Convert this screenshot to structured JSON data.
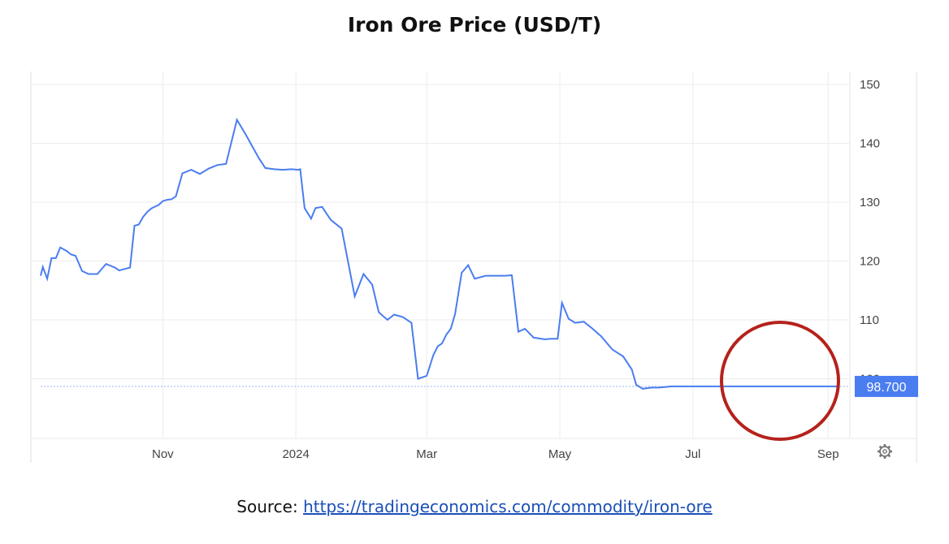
{
  "chart_data": {
    "type": "line",
    "title": "Iron Ore Price (USD/T)",
    "xlabel": "",
    "ylabel": "",
    "x_range": [
      "2023-09-06",
      "2024-09-05"
    ],
    "ylim": [
      90,
      152
    ],
    "y_ticks": [
      100,
      110,
      120,
      130,
      140,
      150
    ],
    "y_axis_position": "right",
    "x_ticks": [
      {
        "label": "Nov",
        "date": "2023-11-01"
      },
      {
        "label": "2024",
        "date": "2024-01-01"
      },
      {
        "label": "Mar",
        "date": "2024-03-01"
      },
      {
        "label": "May",
        "date": "2024-05-01"
      },
      {
        "label": "Jul",
        "date": "2024-07-01"
      },
      {
        "label": "Sep",
        "date": "2024-09-01"
      }
    ],
    "grid": true,
    "line_color": "#4a7df0",
    "last_value": 98.7,
    "last_value_label": "98.700",
    "highlight_circle_color": "#b5221c",
    "series": [
      {
        "x": [
          "2023-09-06",
          "2023-09-07",
          "2023-09-09",
          "2023-09-11",
          "2023-09-13",
          "2023-09-15",
          "2023-09-18",
          "2023-09-20",
          "2023-09-22",
          "2023-09-25",
          "2023-09-28",
          "2023-10-02",
          "2023-10-06",
          "2023-10-10",
          "2023-10-12",
          "2023-10-14",
          "2023-10-17",
          "2023-10-19",
          "2023-10-21",
          "2023-10-23",
          "2023-10-25",
          "2023-10-27",
          "2023-10-30",
          "2023-11-01",
          "2023-11-03",
          "2023-11-05",
          "2023-11-07",
          "2023-11-10",
          "2023-11-14",
          "2023-11-18",
          "2023-11-22",
          "2023-11-26",
          "2023-11-30",
          "2023-12-05",
          "2023-12-09",
          "2023-12-12",
          "2023-12-15",
          "2023-12-18",
          "2023-12-22",
          "2023-12-26",
          "2023-12-30",
          "2024-01-02",
          "2024-01-03",
          "2024-01-05",
          "2024-01-08",
          "2024-01-10",
          "2024-01-13",
          "2024-01-17",
          "2024-01-22",
          "2024-01-28",
          "2024-02-01",
          "2024-02-05",
          "2024-02-08",
          "2024-02-12",
          "2024-02-15",
          "2024-02-19",
          "2024-02-23",
          "2024-02-26",
          "2024-03-01",
          "2024-03-04",
          "2024-03-06",
          "2024-03-08",
          "2024-03-10",
          "2024-03-12",
          "2024-03-14",
          "2024-03-17",
          "2024-03-20",
          "2024-03-23",
          "2024-03-28",
          "2024-04-03",
          "2024-04-06",
          "2024-04-09",
          "2024-04-12",
          "2024-04-15",
          "2024-04-19",
          "2024-04-24",
          "2024-04-27",
          "2024-04-30",
          "2024-05-02",
          "2024-05-05",
          "2024-05-08",
          "2024-05-12",
          "2024-05-16",
          "2024-05-20",
          "2024-05-25",
          "2024-05-30",
          "2024-06-03",
          "2024-06-05",
          "2024-06-08",
          "2024-06-12",
          "2024-06-15",
          "2024-06-18",
          "2024-06-21",
          "2024-06-25",
          "2024-06-28",
          "2024-07-01",
          "2024-07-03",
          "2024-07-06",
          "2024-07-10",
          "2024-07-14",
          "2024-07-18",
          "2024-07-22",
          "2024-07-26",
          "2024-07-29",
          "2024-07-31",
          "2024-08-03",
          "2024-08-06",
          "2024-08-10",
          "2024-08-14",
          "2024-08-17",
          "2024-08-20",
          "2024-08-23",
          "2024-08-27",
          "2024-08-31",
          "2024-09-03",
          "2024-09-05"
        ],
        "y": [
          117.5,
          119.0,
          117.0,
          120.5,
          120.5,
          122.3,
          121.7,
          121.1,
          120.9,
          118.3,
          117.8,
          117.8,
          119.5,
          118.9,
          118.4,
          118.6,
          118.9,
          126.0,
          126.2,
          127.5,
          128.4,
          129.0,
          129.5,
          130.2,
          130.4,
          130.5,
          131.0,
          134.9,
          135.5,
          134.8,
          135.7,
          136.3,
          136.5,
          144.0,
          141.5,
          139.5,
          137.5,
          135.8,
          135.6,
          135.5,
          135.6,
          135.5,
          135.6,
          129.0,
          127.2,
          129.0,
          129.2,
          127.0,
          125.5,
          114.0,
          117.8,
          116.0,
          111.3,
          110.0,
          110.9,
          110.5,
          109.5,
          100.0,
          100.5,
          104.0,
          105.5,
          106.0,
          107.5,
          108.5,
          111.0,
          118.0,
          119.3,
          117.0,
          117.5,
          117.5,
          117.5,
          117.6,
          108.0,
          108.5,
          107.0,
          106.7,
          106.8,
          106.8,
          112.9,
          110.2,
          109.5,
          109.7,
          108.5,
          107.2,
          105.0,
          103.8,
          101.6,
          99.0,
          98.3,
          98.5,
          98.5,
          98.6,
          98.7,
          98.7,
          98.7,
          98.7,
          98.7,
          98.7,
          98.7,
          98.7,
          98.7,
          98.7,
          98.7,
          98.7,
          98.7,
          98.7,
          98.7,
          98.7,
          98.7,
          98.7,
          98.7,
          98.7,
          98.7,
          98.7,
          98.7,
          98.7
        ]
      }
    ]
  },
  "source": {
    "prefix": "Source: ",
    "link_text": "https://tradingeconomics.com/commodity/iron-ore"
  },
  "icons": {
    "settings": "gear-icon"
  }
}
